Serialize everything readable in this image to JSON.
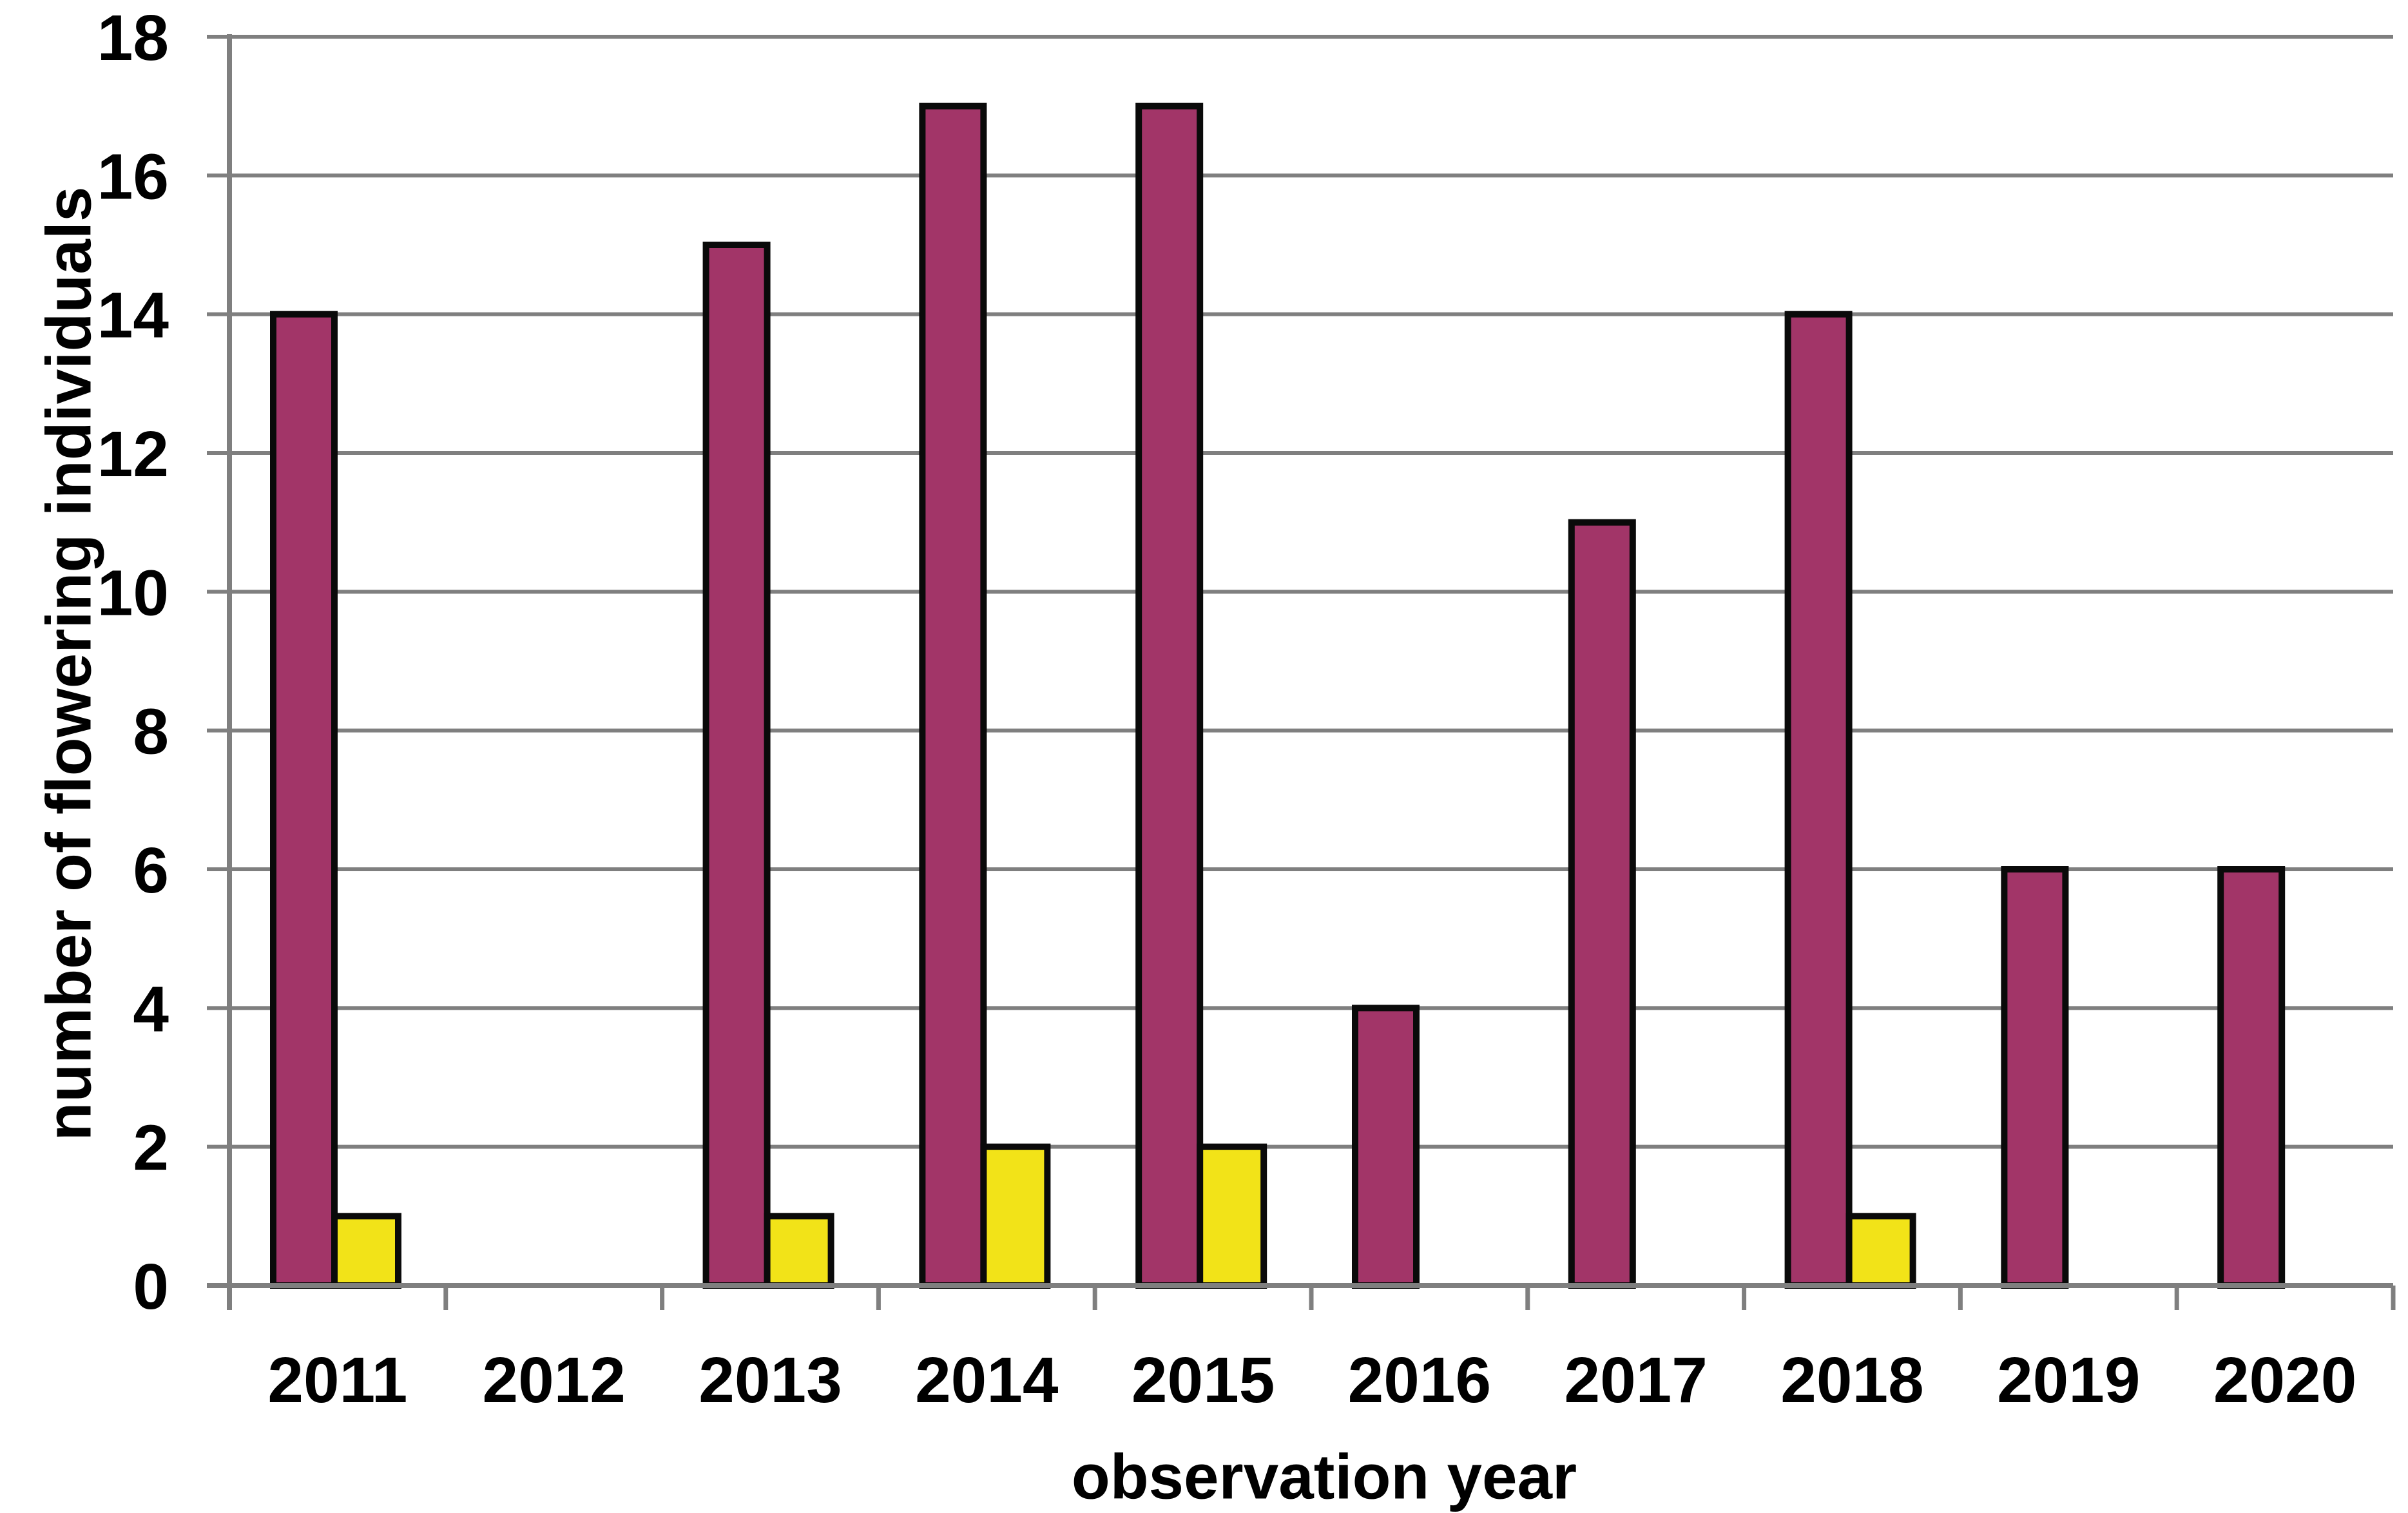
{
  "figure": {
    "background": "#FFFFFF"
  },
  "chart_data": {
    "type": "bar",
    "title": "",
    "xlabel": "observation year",
    "ylabel": "number of flowering individuals",
    "categories": [
      "2011",
      "2012",
      "2013",
      "2014",
      "2015",
      "2016",
      "2017",
      "2018",
      "2019",
      "2020"
    ],
    "series": [
      {
        "name": "magenta",
        "color": "#A23568",
        "values": [
          14,
          0,
          15,
          17,
          17,
          4,
          11,
          14,
          6,
          6
        ]
      },
      {
        "name": "yellow",
        "color": "#F2E318",
        "values": [
          1,
          0,
          1,
          2,
          2,
          0,
          0,
          1,
          0,
          0
        ]
      }
    ],
    "ylim": [
      0,
      18
    ],
    "ytick_step": 2,
    "yticks": [
      "0",
      "2",
      "4",
      "6",
      "8",
      "10",
      "12",
      "14",
      "16",
      "18"
    ],
    "grid": true,
    "legend": "none",
    "bar_outline_color": "#0A0A0A",
    "axis_color": "#7F7F7F",
    "gridline_color": "#7F7F7F",
    "text_color": "#000000"
  }
}
